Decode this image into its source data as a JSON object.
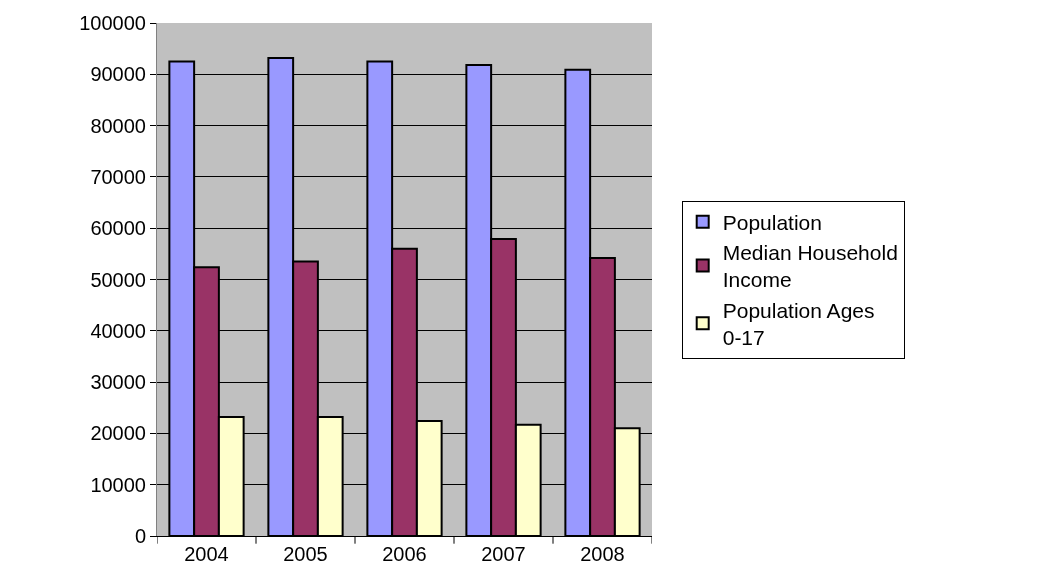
{
  "chart_data": {
    "type": "bar",
    "categories": [
      "2004",
      "2005",
      "2006",
      "2007",
      "2008"
    ],
    "series": [
      {
        "name": "Population",
        "color": "#9999ff",
        "values": [
          92500,
          93200,
          92500,
          91800,
          90900
        ]
      },
      {
        "name": "Median Household Income",
        "color": "#993366",
        "values": [
          52400,
          53500,
          56000,
          57900,
          54200
        ]
      },
      {
        "name": "Population Ages 0-17",
        "color": "#ffffcc",
        "values": [
          23200,
          23200,
          22400,
          21700,
          21000
        ]
      }
    ],
    "ylim": [
      0,
      100000
    ],
    "yticks": [
      0,
      10000,
      20000,
      30000,
      40000,
      50000,
      60000,
      70000,
      80000,
      90000,
      100000
    ],
    "grid": "y",
    "legend": "right"
  }
}
